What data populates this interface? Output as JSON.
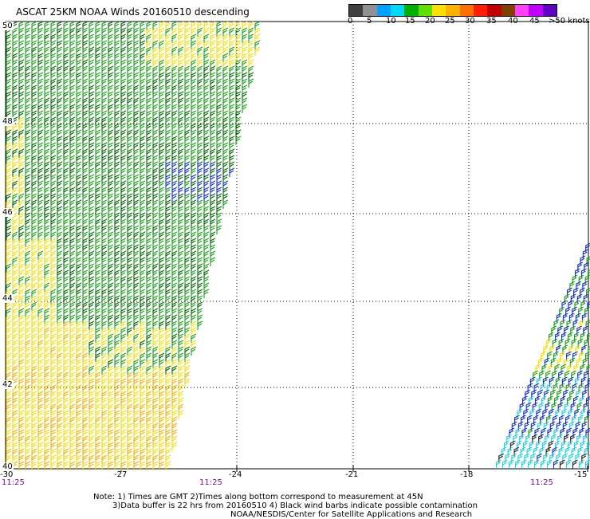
{
  "title": "ASCAT 25KM NOAA Winds 20160510 descending",
  "legend": {
    "colors": [
      "#404040",
      "#909090",
      "#00a0ff",
      "#00d8ff",
      "#00b000",
      "#60e000",
      "#ffe000",
      "#ffb000",
      "#ff7000",
      "#ff2000",
      "#c00000",
      "#804000",
      "#ff40ff",
      "#c000ff",
      "#6000c0"
    ],
    "labels": [
      "0",
      "5",
      "10",
      "15",
      "20",
      "25",
      "30",
      "35",
      "40",
      "45",
      ">50 knots"
    ]
  },
  "map": {
    "lat_labels": [
      "50",
      "48",
      "46",
      "44",
      "42",
      "40"
    ],
    "lon_labels": [
      "-30",
      "-27",
      "-24",
      "-21",
      "-18",
      "-15"
    ],
    "time_labels": [
      "11:25",
      "11:25",
      "11:25"
    ],
    "colors": {
      "grid": "#000000",
      "green": "#18a018",
      "darkgreen": "#006400",
      "yellow": "#f0e000",
      "orange": "#f0b000",
      "blue": "#1030d0",
      "cyan": "#20d0e0",
      "black": "#202020"
    }
  },
  "notes": {
    "line1": "Note: 1) Times are GMT 2)Times along bottom correspond to measurement at 45N",
    "line2": "3)Data buffer is 22 hrs from 20160510 4) Black wind barbs indicate possible contamination",
    "line3": "NOAA/NESDIS/Center for Satellite Applications and Research"
  }
}
